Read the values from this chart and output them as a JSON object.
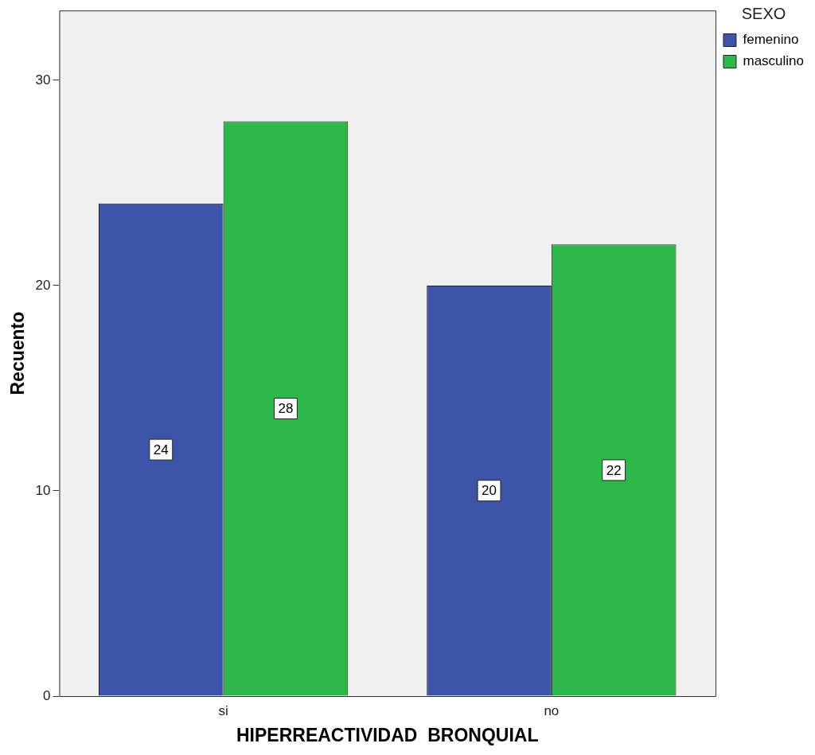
{
  "chart_data": {
    "type": "bar",
    "xlabel": "HIPERREACTIVIDAD  BRONQUIAL",
    "ylabel": "Recuento",
    "legend_title": "SEXO",
    "categories": [
      "si",
      "no"
    ],
    "series": [
      {
        "name": "femenino",
        "color": "#3d55a8",
        "values": [
          24,
          20
        ]
      },
      {
        "name": "masculino",
        "color": "#2eb84b",
        "values": [
          28,
          22
        ]
      }
    ],
    "ylim": [
      0,
      33.4
    ],
    "yticks": [
      0,
      10,
      20,
      30
    ],
    "grid": false,
    "legend": "top right",
    "data_labels": true
  }
}
